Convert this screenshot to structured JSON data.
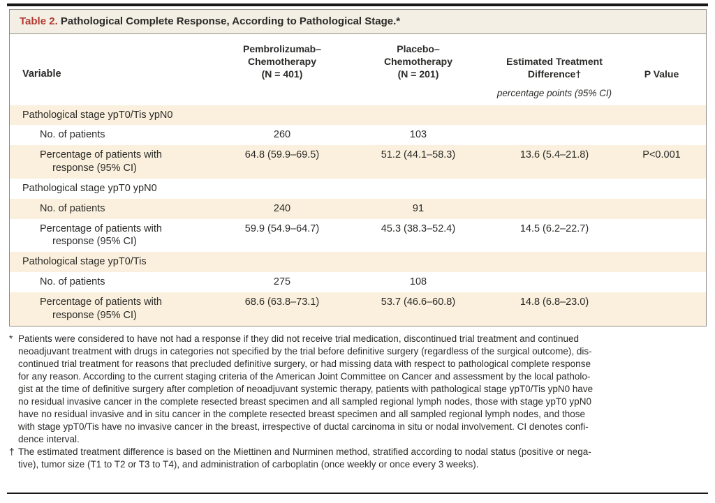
{
  "colors": {
    "accent_red": "#b23a32",
    "shade": "#faf0dd",
    "title_bg": "#f4efe4",
    "border": "#8e8d88",
    "text": "#2b2a28"
  },
  "title": {
    "label": "Table 2.",
    "text": " Pathological Complete Response, According to Pathological Stage.*"
  },
  "header": {
    "variable": "Variable",
    "pembro": "Pembrolizumab–\nChemotherapy\n(N = 401)",
    "placebo": "Placebo–\nChemotherapy\n(N = 201)",
    "diff": "Estimated Treatment\nDifference†",
    "p_value": "P Value",
    "units": "percentage points (95% CI)"
  },
  "rows": [
    {
      "type": "group",
      "label": "Pathological stage ypT0/Tis ypN0"
    },
    {
      "type": "data",
      "label": "No. of patients",
      "pembro": "260",
      "placebo": "103",
      "diff": "",
      "p": ""
    },
    {
      "type": "data",
      "label": "Percentage of patients with\nresponse (95% CI)",
      "pembro": "64.8 (59.9–69.5)",
      "placebo": "51.2 (44.1–58.3)",
      "diff": "13.6 (5.4–21.8)",
      "p": "P<0.001"
    },
    {
      "type": "group",
      "label": "Pathological stage ypT0 ypN0"
    },
    {
      "type": "data",
      "label": "No. of patients",
      "pembro": "240",
      "placebo": "91",
      "diff": "",
      "p": ""
    },
    {
      "type": "data",
      "label": "Percentage of patients with\nresponse (95% CI)",
      "pembro": "59.9 (54.9–64.7)",
      "placebo": "45.3 (38.3–52.4)",
      "diff": "14.5 (6.2–22.7)",
      "p": ""
    },
    {
      "type": "group",
      "label": "Pathological stage ypT0/Tis"
    },
    {
      "type": "data",
      "label": "No. of patients",
      "pembro": "275",
      "placebo": "108",
      "diff": "",
      "p": ""
    },
    {
      "type": "data",
      "label": "Percentage of patients with\nresponse (95% CI)",
      "pembro": "68.6 (63.8–73.1)",
      "placebo": "53.7 (46.6–60.8)",
      "diff": "14.8 (6.8–23.0)",
      "p": ""
    }
  ],
  "footnotes": [
    {
      "marker": "*",
      "lines": [
        "Patients were considered to have not had a response if they did not receive trial medication, discontinued trial treatment and continued",
        "neoadjuvant treatment with drugs in categories not specified by the trial before definitive surgery (regardless of the surgical outcome), dis-",
        "continued trial treatment for reasons that precluded definitive surgery, or had missing data with respect to pathological complete response",
        "for any reason. According to the current staging criteria of the American Joint Committee on Cancer and assessment by the local patholo-",
        "gist at the time of definitive surgery after completion of neoadjuvant systemic therapy, patients with pathological stage ypT0/Tis ypN0 have",
        "no residual invasive cancer in the complete resected breast specimen and all sampled regional lymph nodes, those with stage ypT0 ypN0",
        "have no residual invasive and in situ cancer in the complete resected breast specimen and all sampled regional lymph nodes, and those",
        "with stage ypT0/Tis have no invasive cancer in the breast, irrespective of ductal carcinoma in situ or nodal involvement. CI denotes confi-",
        "dence interval."
      ]
    },
    {
      "marker": "†",
      "lines": [
        "The estimated treatment difference is based on the Miettinen and Nurminen method, stratified according to nodal status (positive or nega-",
        "tive), tumor size (T1 to T2 or T3 to T4), and administration of carboplatin (once weekly or once every 3 weeks)."
      ]
    }
  ]
}
